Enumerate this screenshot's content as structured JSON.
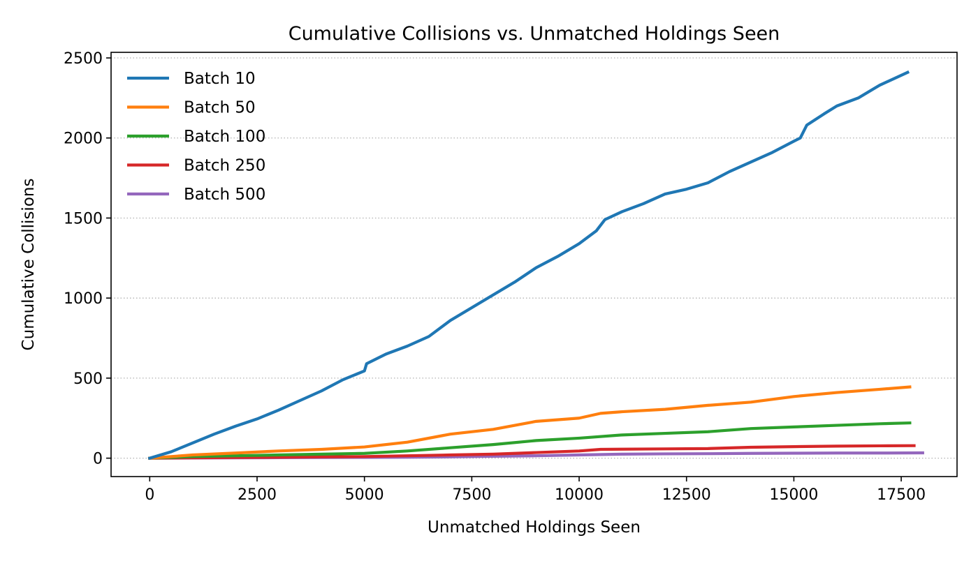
{
  "chart_data": {
    "type": "line",
    "title": "Cumulative Collisions vs. Unmatched Holdings Seen",
    "xlabel": "Unmatched Holdings Seen",
    "ylabel": "Cumulative Collisions",
    "xlim": [
      -900,
      18800
    ],
    "ylim": [
      -115,
      2535
    ],
    "xticks": [
      0,
      2500,
      5000,
      7500,
      10000,
      12500,
      15000,
      17500
    ],
    "yticks": [
      0,
      500,
      1000,
      1500,
      2000,
      2500
    ],
    "grid": "y-dotted",
    "legend_position": "upper-left",
    "series": [
      {
        "name": "Batch 10",
        "color": "#1f77b4",
        "points": [
          [
            0,
            0
          ],
          [
            500,
            40
          ],
          [
            1000,
            95
          ],
          [
            1500,
            150
          ],
          [
            2000,
            200
          ],
          [
            2500,
            245
          ],
          [
            3000,
            300
          ],
          [
            3500,
            360
          ],
          [
            4000,
            420
          ],
          [
            4500,
            490
          ],
          [
            5000,
            545
          ],
          [
            5050,
            590
          ],
          [
            5500,
            650
          ],
          [
            6000,
            700
          ],
          [
            6500,
            760
          ],
          [
            7000,
            860
          ],
          [
            7500,
            940
          ],
          [
            8000,
            1020
          ],
          [
            8500,
            1100
          ],
          [
            9000,
            1190
          ],
          [
            9500,
            1260
          ],
          [
            10000,
            1340
          ],
          [
            10400,
            1420
          ],
          [
            10600,
            1490
          ],
          [
            11000,
            1540
          ],
          [
            11500,
            1590
          ],
          [
            12000,
            1650
          ],
          [
            12500,
            1680
          ],
          [
            13000,
            1720
          ],
          [
            13500,
            1790
          ],
          [
            14000,
            1850
          ],
          [
            14500,
            1910
          ],
          [
            15000,
            1980
          ],
          [
            15150,
            2000
          ],
          [
            15300,
            2080
          ],
          [
            15700,
            2150
          ],
          [
            16000,
            2200
          ],
          [
            16500,
            2250
          ],
          [
            17000,
            2330
          ],
          [
            17650,
            2410
          ]
        ]
      },
      {
        "name": "Batch 50",
        "color": "#ff7f0e",
        "points": [
          [
            0,
            0
          ],
          [
            1000,
            20
          ],
          [
            2000,
            32
          ],
          [
            3000,
            45
          ],
          [
            4000,
            55
          ],
          [
            5000,
            70
          ],
          [
            6000,
            100
          ],
          [
            7000,
            150
          ],
          [
            8000,
            180
          ],
          [
            9000,
            230
          ],
          [
            10000,
            250
          ],
          [
            10500,
            280
          ],
          [
            11000,
            290
          ],
          [
            12000,
            305
          ],
          [
            13000,
            330
          ],
          [
            14000,
            350
          ],
          [
            15000,
            385
          ],
          [
            16000,
            410
          ],
          [
            17000,
            430
          ],
          [
            17700,
            445
          ]
        ]
      },
      {
        "name": "Batch 100",
        "color": "#2ca02c",
        "points": [
          [
            0,
            0
          ],
          [
            1000,
            10
          ],
          [
            2000,
            15
          ],
          [
            3000,
            20
          ],
          [
            4000,
            25
          ],
          [
            5000,
            30
          ],
          [
            6000,
            45
          ],
          [
            7000,
            65
          ],
          [
            8000,
            85
          ],
          [
            9000,
            110
          ],
          [
            10000,
            125
          ],
          [
            11000,
            145
          ],
          [
            12000,
            155
          ],
          [
            13000,
            165
          ],
          [
            14000,
            185
          ],
          [
            15000,
            195
          ],
          [
            16000,
            205
          ],
          [
            17000,
            215
          ],
          [
            17700,
            220
          ]
        ]
      },
      {
        "name": "Batch 250",
        "color": "#d62728",
        "points": [
          [
            0,
            0
          ],
          [
            1000,
            2
          ],
          [
            2000,
            4
          ],
          [
            3000,
            6
          ],
          [
            4000,
            8
          ],
          [
            5000,
            10
          ],
          [
            6000,
            15
          ],
          [
            7000,
            20
          ],
          [
            8000,
            25
          ],
          [
            9000,
            35
          ],
          [
            10000,
            45
          ],
          [
            10500,
            55
          ],
          [
            11000,
            56
          ],
          [
            12000,
            58
          ],
          [
            13000,
            60
          ],
          [
            14000,
            68
          ],
          [
            15000,
            72
          ],
          [
            16000,
            75
          ],
          [
            17000,
            77
          ],
          [
            17800,
            78
          ]
        ]
      },
      {
        "name": "Batch 500",
        "color": "#9467bd",
        "points": [
          [
            0,
            0
          ],
          [
            1000,
            1
          ],
          [
            2000,
            2
          ],
          [
            3000,
            3
          ],
          [
            4000,
            4
          ],
          [
            5000,
            5
          ],
          [
            6000,
            6
          ],
          [
            7000,
            8
          ],
          [
            8000,
            12
          ],
          [
            9000,
            15
          ],
          [
            10000,
            20
          ],
          [
            11000,
            25
          ],
          [
            12000,
            27
          ],
          [
            13000,
            28
          ],
          [
            14000,
            30
          ],
          [
            15000,
            31
          ],
          [
            16000,
            32
          ],
          [
            17000,
            32
          ],
          [
            18000,
            33
          ]
        ]
      }
    ]
  }
}
